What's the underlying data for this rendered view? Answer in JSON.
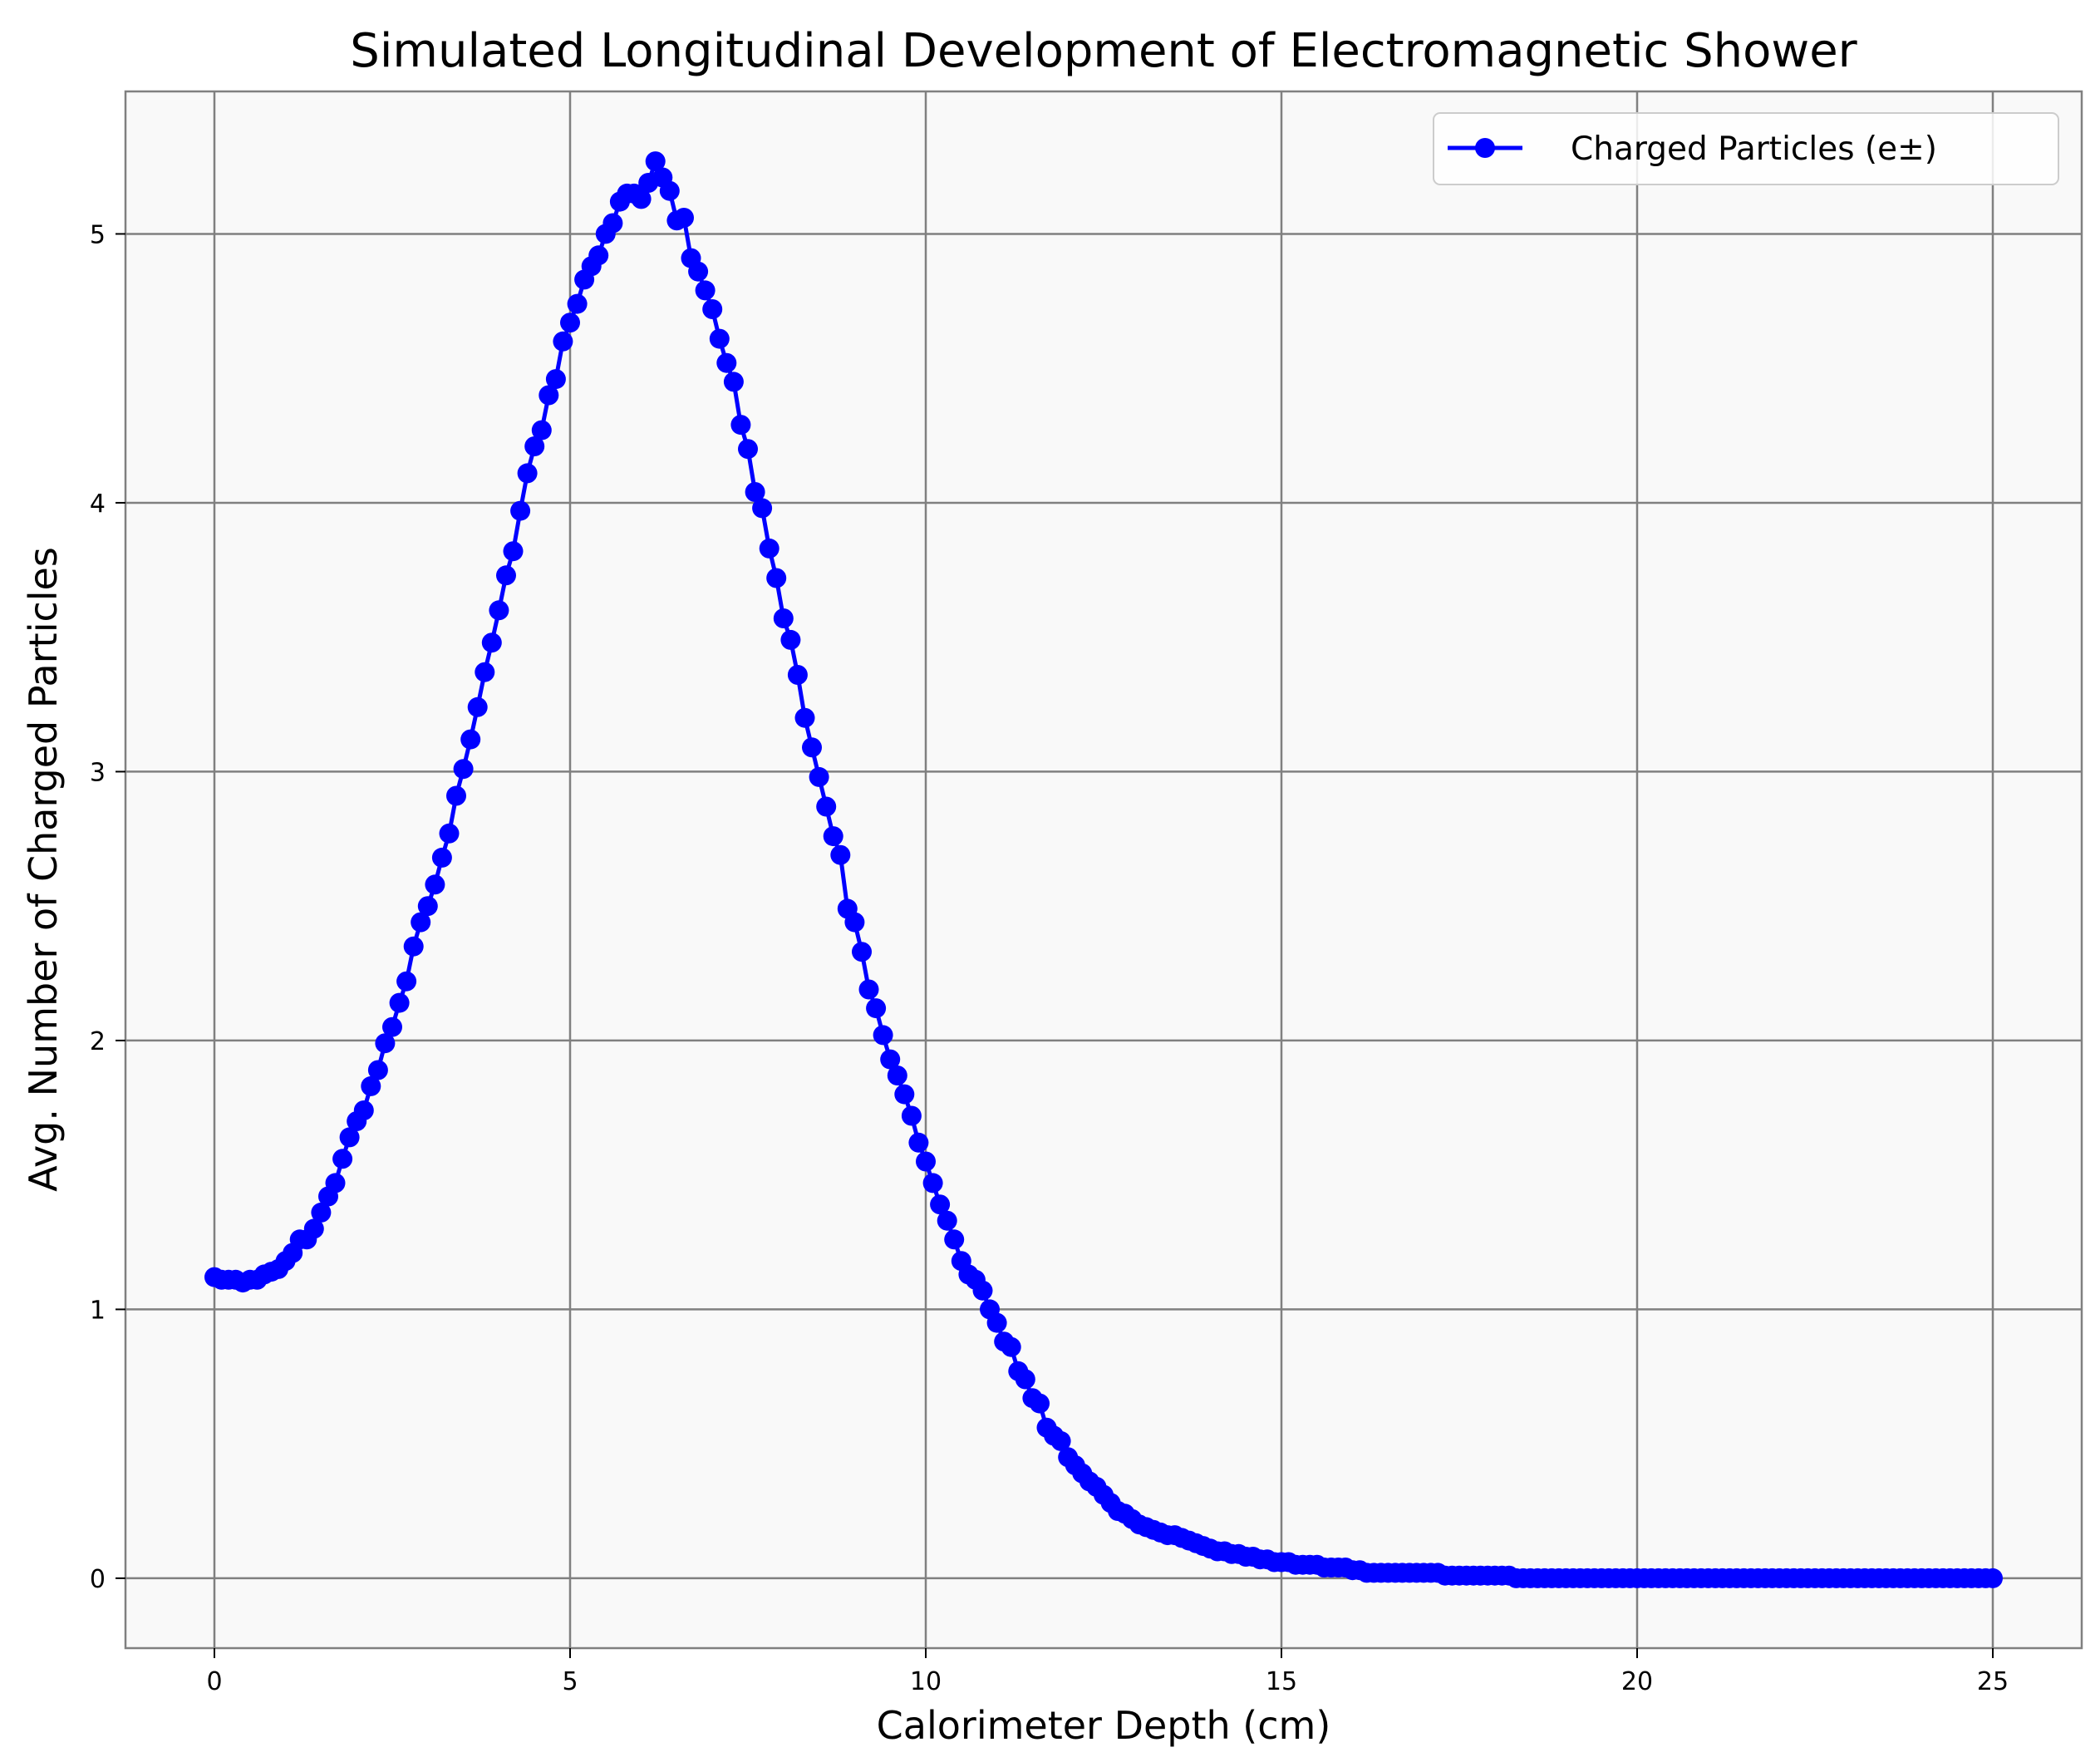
{
  "chart_data": {
    "type": "line",
    "title": "Simulated Longitudinal Development of Electromagnetic Shower",
    "xlabel": "Calorimeter Depth (cm)",
    "ylabel": "Avg. Number of Charged Particles",
    "xlim": [
      -1.25,
      26.25
    ],
    "ylim": [
      -0.26,
      5.53
    ],
    "xticks": [
      0,
      5,
      10,
      15,
      20,
      25
    ],
    "xtick_labels": [
      "0",
      "5",
      "10",
      "15",
      "20",
      "25"
    ],
    "yticks": [
      0,
      1,
      2,
      3,
      4,
      5
    ],
    "ytick_labels": [
      "0",
      "1",
      "2",
      "3",
      "4",
      "5"
    ],
    "grid": true,
    "legend_position": "top-right",
    "series": [
      {
        "name": "Charged Particles (e±)",
        "color": "#0000ff",
        "marker": "circle",
        "x": [
          0.0,
          0.1,
          0.2,
          0.3,
          0.4,
          0.5,
          0.6,
          0.7,
          0.8,
          0.9,
          1.0,
          1.1,
          1.2,
          1.3,
          1.4,
          1.5,
          1.6,
          1.7,
          1.8,
          1.9,
          2.0,
          2.1,
          2.2,
          2.3,
          2.4,
          2.5,
          2.6,
          2.7,
          2.8,
          2.9,
          3.0,
          3.1,
          3.2,
          3.3,
          3.4,
          3.5,
          3.6,
          3.7,
          3.8,
          3.9,
          4.0,
          4.1,
          4.2,
          4.3,
          4.4,
          4.5,
          4.6,
          4.7,
          4.8,
          4.9,
          5.0,
          5.1,
          5.2,
          5.3,
          5.4,
          5.5,
          5.6,
          5.7,
          5.8,
          5.9,
          6.0,
          6.1,
          6.2,
          6.3,
          6.4,
          6.5,
          6.6,
          6.7,
          6.8,
          6.9,
          7.0,
          7.1,
          7.2,
          7.3,
          7.4,
          7.5,
          7.6,
          7.7,
          7.8,
          7.9,
          8.0,
          8.1,
          8.2,
          8.3,
          8.4,
          8.5,
          8.6,
          8.7,
          8.8,
          8.9,
          9.0,
          9.1,
          9.2,
          9.3,
          9.4,
          9.5,
          9.6,
          9.7,
          9.8,
          9.9,
          10.0,
          10.1,
          10.2,
          10.3,
          10.4,
          10.5,
          10.6,
          10.7,
          10.8,
          10.9,
          11.0,
          11.1,
          11.2,
          11.3,
          11.4,
          11.5,
          11.6,
          11.7,
          11.8,
          11.9,
          12.0,
          12.1,
          12.2,
          12.3,
          12.4,
          12.5,
          12.6,
          12.7,
          12.8,
          12.9,
          13.0,
          13.1,
          13.2,
          13.3,
          13.4,
          13.5,
          13.6,
          13.7,
          13.8,
          13.9,
          14.0,
          14.1,
          14.2,
          14.3,
          14.4,
          14.5,
          14.6,
          14.7,
          14.8,
          14.9,
          15.0,
          15.1,
          15.2,
          15.3,
          15.4,
          15.5,
          15.6,
          15.7,
          15.8,
          15.9,
          16.0,
          16.1,
          16.2,
          16.3,
          16.4,
          16.5,
          16.6,
          16.7,
          16.8,
          16.9,
          17.0,
          17.1,
          17.2,
          17.3,
          17.4,
          17.5,
          17.6,
          17.7,
          17.8,
          17.9,
          18.0,
          18.1,
          18.2,
          18.3,
          18.4,
          18.5,
          18.6,
          18.7,
          18.8,
          18.9,
          19.0,
          19.1,
          19.2,
          19.3,
          19.4,
          19.5,
          19.6,
          19.7,
          19.8,
          19.9,
          20.0,
          20.1,
          20.2,
          20.3,
          20.4,
          20.5,
          20.6,
          20.7,
          20.8,
          20.9,
          21.0,
          21.1,
          21.2,
          21.3,
          21.4,
          21.5,
          21.6,
          21.7,
          21.8,
          21.9,
          22.0,
          22.1,
          22.2,
          22.3,
          22.4,
          22.5,
          22.6,
          22.7,
          22.8,
          22.9,
          23.0,
          23.1,
          23.2,
          23.3,
          23.4,
          23.5,
          23.6,
          23.7,
          23.8,
          23.9,
          24.0,
          24.1,
          24.2,
          24.3,
          24.4,
          24.5,
          24.6,
          24.7,
          24.8,
          24.9,
          25.0
        ],
        "y": [
          1.12,
          1.11,
          1.11,
          1.11,
          1.1,
          1.11,
          1.11,
          1.13,
          1.14,
          1.15,
          1.18,
          1.21,
          1.26,
          1.26,
          1.3,
          1.36,
          1.42,
          1.47,
          1.56,
          1.64,
          1.7,
          1.74,
          1.83,
          1.89,
          1.99,
          2.05,
          2.14,
          2.22,
          2.35,
          2.44,
          2.5,
          2.58,
          2.68,
          2.77,
          2.91,
          3.01,
          3.12,
          3.24,
          3.37,
          3.48,
          3.6,
          3.73,
          3.82,
          3.97,
          4.11,
          4.21,
          4.27,
          4.4,
          4.46,
          4.6,
          4.67,
          4.74,
          4.83,
          4.88,
          4.92,
          5.0,
          5.04,
          5.12,
          5.15,
          5.15,
          5.13,
          5.19,
          5.27,
          5.21,
          5.16,
          5.05,
          5.06,
          4.91,
          4.86,
          4.79,
          4.72,
          4.61,
          4.52,
          4.45,
          4.29,
          4.2,
          4.04,
          3.98,
          3.83,
          3.72,
          3.57,
          3.49,
          3.36,
          3.2,
          3.09,
          2.98,
          2.87,
          2.76,
          2.69,
          2.49,
          2.44,
          2.33,
          2.19,
          2.12,
          2.02,
          1.93,
          1.87,
          1.8,
          1.72,
          1.62,
          1.55,
          1.47,
          1.39,
          1.33,
          1.26,
          1.18,
          1.13,
          1.11,
          1.07,
          1.0,
          0.95,
          0.88,
          0.86,
          0.77,
          0.74,
          0.67,
          0.65,
          0.56,
          0.53,
          0.51,
          0.45,
          0.42,
          0.39,
          0.36,
          0.34,
          0.31,
          0.28,
          0.25,
          0.24,
          0.22,
          0.2,
          0.19,
          0.18,
          0.17,
          0.16,
          0.16,
          0.15,
          0.14,
          0.13,
          0.12,
          0.11,
          0.1,
          0.1,
          0.09,
          0.09,
          0.08,
          0.08,
          0.07,
          0.07,
          0.06,
          0.06,
          0.06,
          0.05,
          0.05,
          0.05,
          0.05,
          0.04,
          0.04,
          0.04,
          0.04,
          0.03,
          0.03,
          0.02,
          0.02,
          0.02,
          0.02,
          0.02,
          0.02,
          0.02,
          0.02,
          0.02,
          0.02,
          0.02,
          0.01,
          0.01,
          0.01,
          0.01,
          0.01,
          0.01,
          0.01,
          0.01,
          0.01,
          0.01,
          0.0,
          0.0,
          0.0,
          0.0,
          0.0,
          0.0,
          0.0,
          0.0,
          0.0,
          0.0,
          0.0,
          0.0,
          0.0,
          0.0,
          0.0,
          0.0,
          0.0,
          0.0,
          0.0,
          0.0,
          0.0,
          0.0,
          0.0,
          0.0,
          0.0,
          0.0,
          0.0,
          0.0,
          0.0,
          0.0,
          0.0,
          0.0,
          0.0,
          0.0,
          0.0,
          0.0,
          0.0,
          0.0,
          0.0,
          0.0,
          0.0,
          0.0,
          0.0,
          0.0,
          0.0,
          0.0,
          0.0,
          0.0,
          0.0,
          0.0,
          0.0,
          0.0,
          0.0,
          0.0,
          0.0,
          0.0,
          0.0,
          0.0,
          0.0,
          0.0,
          0.0,
          0.0,
          0.0,
          0.0,
          0.0,
          0.0,
          0.0,
          0.0
        ]
      }
    ]
  },
  "colors": {
    "plot_background": "#f9f9f9",
    "grid": "#808080",
    "axes_frame": "#808080"
  }
}
